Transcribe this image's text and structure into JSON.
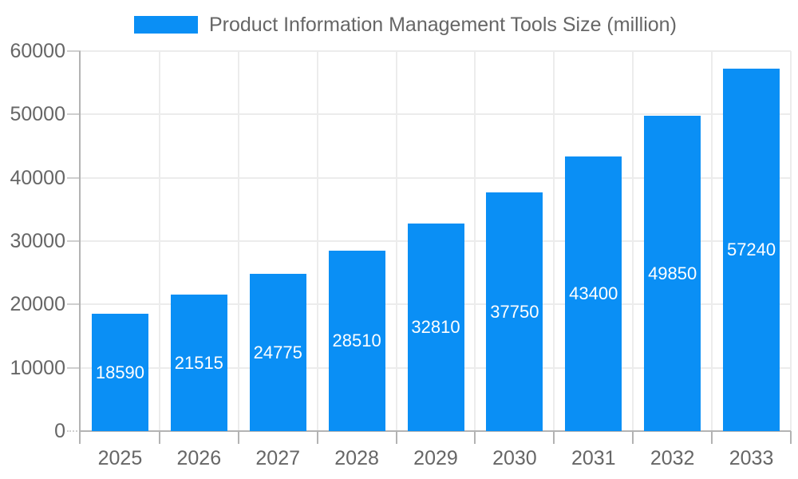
{
  "chart_data": {
    "type": "bar",
    "title": "Product Information Management Tools Size (million)",
    "categories": [
      "2025",
      "2026",
      "2027",
      "2028",
      "2029",
      "2030",
      "2031",
      "2032",
      "2033"
    ],
    "values": [
      18590,
      21515,
      24775,
      28510,
      32810,
      37750,
      43400,
      49850,
      57240
    ],
    "xlabel": "",
    "ylabel": "",
    "ylim": [
      0,
      60000
    ],
    "yticks": [
      0,
      10000,
      20000,
      30000,
      40000,
      50000,
      60000
    ],
    "grid": true,
    "legend_position": "top",
    "value_labels": "inside-center",
    "bar_color": "#0a8ff5",
    "bar_label_color": "#ffffff",
    "axis_text_color": "#666666",
    "axis_line_color": "#b3b3b3",
    "grid_color": "#ececec"
  }
}
